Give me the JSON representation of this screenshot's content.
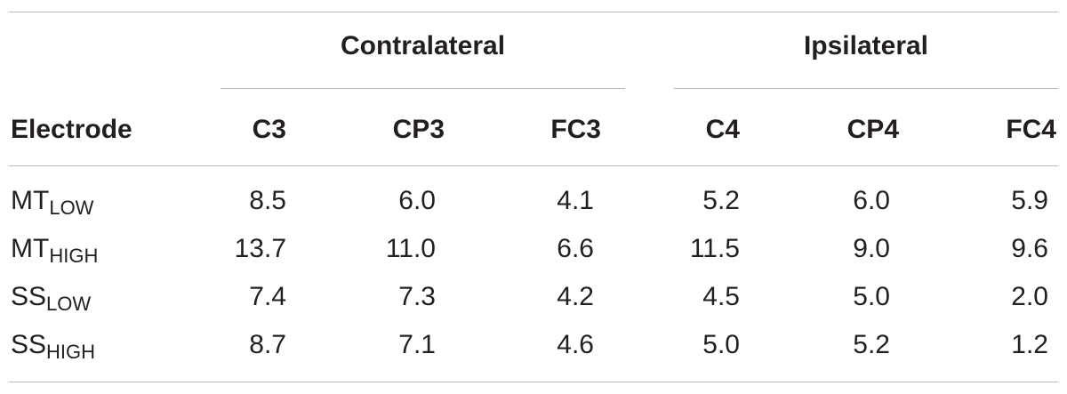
{
  "table": {
    "groups": [
      {
        "label": "Contralateral"
      },
      {
        "label": "Ipsilateral"
      }
    ],
    "row_header": "Electrode",
    "columns": [
      "C3",
      "CP3",
      "FC3",
      "C4",
      "CP4",
      "FC4"
    ],
    "rows": [
      {
        "base": "MT",
        "sub": "LOW",
        "values": [
          "8.5",
          "6.0",
          "4.1",
          "5.2",
          "6.0",
          "5.9"
        ]
      },
      {
        "base": "MT",
        "sub": "HIGH",
        "values": [
          "13.7",
          "11.0",
          "6.6",
          "11.5",
          "9.0",
          "9.6"
        ]
      },
      {
        "base": "SS",
        "sub": "LOW",
        "values": [
          "7.4",
          "7.3",
          "4.2",
          "4.5",
          "5.0",
          "2.0"
        ]
      },
      {
        "base": "SS",
        "sub": "HIGH",
        "values": [
          "8.7",
          "7.1",
          "4.6",
          "5.0",
          "5.2",
          "1.2"
        ]
      }
    ]
  }
}
